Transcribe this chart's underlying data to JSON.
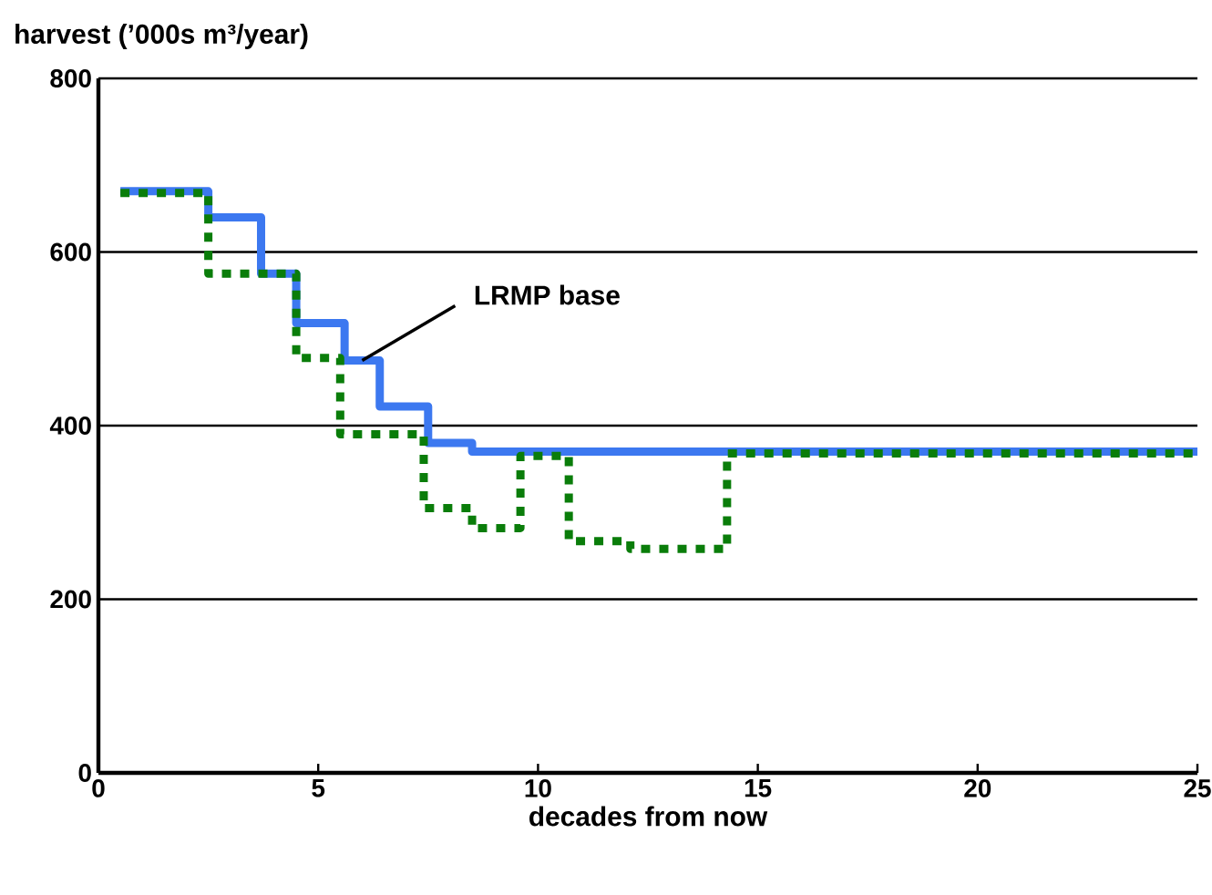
{
  "chart_data": {
    "type": "step",
    "ylabel": "harvest (’000s m³/year)",
    "xlabel": "decades from now",
    "xlim": [
      0,
      25
    ],
    "ylim": [
      0,
      800
    ],
    "xticks": [
      0,
      5,
      10,
      15,
      20,
      25
    ],
    "yticks": [
      0,
      200,
      400,
      600,
      800
    ],
    "grid": "y",
    "series": [
      {
        "name": "LRMP base",
        "color": "#3c78f0",
        "line_style": "solid",
        "x": [
          0.5,
          2.5,
          3.7,
          4.5,
          5.6,
          6.4,
          7.5,
          8.5,
          25
        ],
        "values": [
          670,
          640,
          575,
          518,
          475,
          422,
          380,
          370,
          370
        ]
      },
      {
        "color": "#0a7d0a",
        "line_style": "dotted",
        "x": [
          0.5,
          2.5,
          4.5,
          5.5,
          7.4,
          8.5,
          9.6,
          10.7,
          12.1,
          14.3,
          25
        ],
        "values": [
          668,
          575,
          478,
          390,
          305,
          282,
          365,
          267,
          258,
          368,
          368
        ]
      }
    ]
  }
}
